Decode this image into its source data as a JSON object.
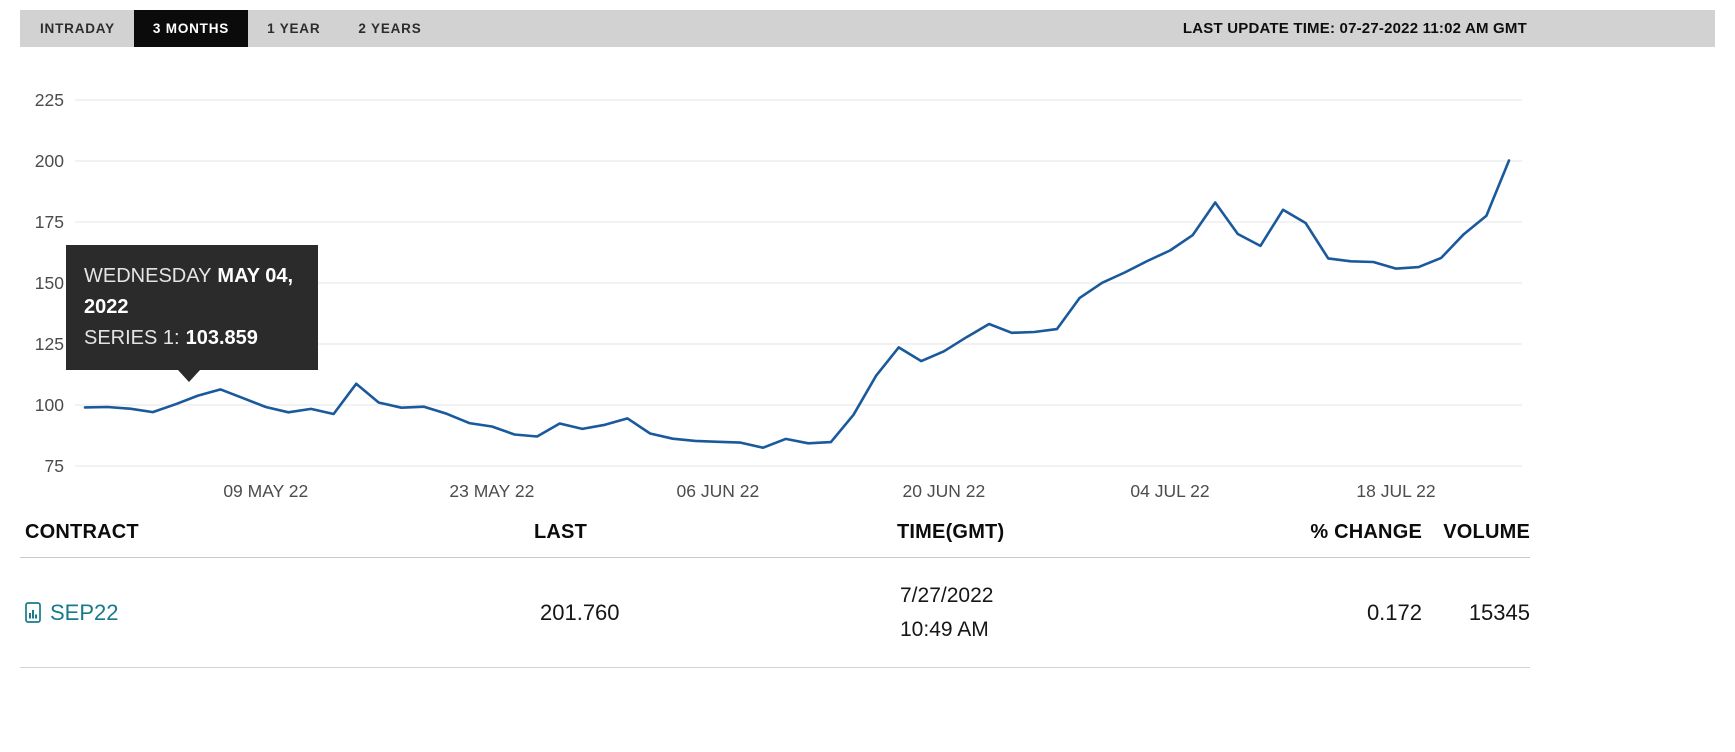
{
  "topbar": {
    "tabs": [
      {
        "label": "INTRADAY",
        "active": false
      },
      {
        "label": "3 MONTHS",
        "active": true
      },
      {
        "label": "1 YEAR",
        "active": false
      },
      {
        "label": "2 YEARS",
        "active": false
      }
    ],
    "last_update": "LAST UPDATE TIME: 07-27-2022 11:02 AM GMT"
  },
  "tooltip": {
    "weekday": "WEDNESDAY",
    "date_bold": "MAY 04, 2022",
    "series_label": "SERIES 1:",
    "series_value": "103.859"
  },
  "chart_data": {
    "type": "line",
    "title": "",
    "series_name": "SERIES 1",
    "line_color": "#19599c",
    "grid": true,
    "ylim": [
      75,
      225
    ],
    "yticks": [
      225,
      200,
      175,
      150,
      125,
      100,
      75
    ],
    "xticks": [
      {
        "index": 8,
        "label": "09 MAY 22"
      },
      {
        "index": 18,
        "label": "23 MAY 22"
      },
      {
        "index": 28,
        "label": "06 JUN 22"
      },
      {
        "index": 38,
        "label": "20 JUN 22"
      },
      {
        "index": 48,
        "label": "04 JUL 22"
      },
      {
        "index": 58,
        "label": "18 JUL 22"
      }
    ],
    "x": [
      "2022-04-27",
      "2022-04-28",
      "2022-04-29",
      "2022-05-02",
      "2022-05-03",
      "2022-05-04",
      "2022-05-05",
      "2022-05-06",
      "2022-05-09",
      "2022-05-10",
      "2022-05-11",
      "2022-05-12",
      "2022-05-13",
      "2022-05-16",
      "2022-05-17",
      "2022-05-18",
      "2022-05-19",
      "2022-05-20",
      "2022-05-23",
      "2022-05-24",
      "2022-05-25",
      "2022-05-26",
      "2022-05-27",
      "2022-05-30",
      "2022-05-31",
      "2022-06-01",
      "2022-06-02",
      "2022-06-03",
      "2022-06-06",
      "2022-06-07",
      "2022-06-08",
      "2022-06-09",
      "2022-06-10",
      "2022-06-13",
      "2022-06-14",
      "2022-06-15",
      "2022-06-16",
      "2022-06-17",
      "2022-06-20",
      "2022-06-21",
      "2022-06-22",
      "2022-06-23",
      "2022-06-24",
      "2022-06-27",
      "2022-06-28",
      "2022-06-29",
      "2022-06-30",
      "2022-07-01",
      "2022-07-04",
      "2022-07-05",
      "2022-07-06",
      "2022-07-07",
      "2022-07-08",
      "2022-07-11",
      "2022-07-12",
      "2022-07-13",
      "2022-07-14",
      "2022-07-15",
      "2022-07-18",
      "2022-07-19",
      "2022-07-20",
      "2022-07-21",
      "2022-07-22",
      "2022-07-25"
    ],
    "values": [
      99.0,
      99.2,
      98.5,
      97.1,
      100.3,
      103.859,
      106.4,
      102.8,
      99.2,
      97.0,
      98.4,
      96.3,
      108.7,
      101.0,
      98.9,
      99.3,
      96.4,
      92.6,
      91.2,
      87.9,
      87.1,
      92.4,
      90.2,
      91.9,
      94.5,
      88.3,
      86.2,
      85.3,
      84.9,
      84.6,
      82.5,
      86.1,
      84.3,
      84.8,
      96.0,
      112.0,
      123.6,
      118.0,
      122.0,
      127.8,
      133.2,
      129.6,
      129.9,
      131.1,
      143.8,
      150.1,
      154.3,
      159.0,
      163.3,
      169.6,
      183.0,
      170.1,
      165.2,
      180.0,
      174.6,
      160.1,
      158.9,
      158.6,
      155.9,
      156.5,
      160.3,
      170.0,
      177.6,
      200.2
    ],
    "highlight": {
      "date": "2022-05-04",
      "value": 103.859
    }
  },
  "table": {
    "headers": [
      "CONTRACT",
      "LAST",
      "TIME(GMT)",
      "% CHANGE",
      "VOLUME"
    ],
    "rows": [
      {
        "contract": "SEP22",
        "last": "201.760",
        "time_line1": "7/27/2022",
        "time_line2": "10:49 AM",
        "pct_change": "0.172",
        "volume": "15345"
      }
    ]
  },
  "colors": {
    "line_blue": "#19599c",
    "link_teal": "#187a8a",
    "tooltip_bg": "#2b2b2b",
    "active_tab_bg": "#0b0b0b",
    "topbar_gray": "#d2d2d2"
  }
}
